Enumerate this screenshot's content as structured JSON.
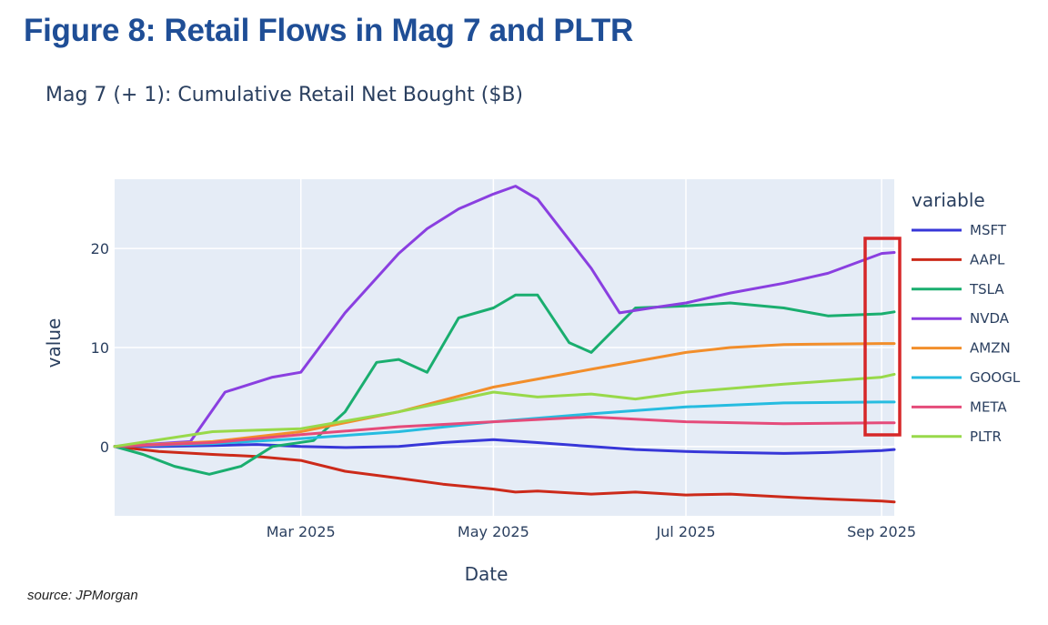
{
  "figure": {
    "title": "Figure 8: Retail Flows in Mag 7 and PLTR",
    "source": "source: JPMorgan"
  },
  "colors": {
    "plot_background": "#e5ecf6",
    "grid": "#ffffff",
    "text": "#2a3f5f",
    "figure_title": "#1f4e96",
    "highlight_box": "#d62728"
  },
  "chart_data": {
    "type": "line",
    "title": "Mag 7 (+ 1): Cumulative Retail Net Bought ($B)",
    "xlabel": "Date",
    "ylabel": "value",
    "legend_title": "variable",
    "legend_position": "right",
    "grid": true,
    "xlim": [
      "2025-01-01",
      "2025-09-05"
    ],
    "ylim": [
      -7,
      27
    ],
    "x_ticks": [
      {
        "date": "2025-03-01",
        "label": "Mar 2025"
      },
      {
        "date": "2025-05-01",
        "label": "May 2025"
      },
      {
        "date": "2025-07-01",
        "label": "Jul 2025"
      },
      {
        "date": "2025-09-01",
        "label": "Sep 2025"
      }
    ],
    "y_ticks": [
      {
        "value": 0,
        "label": "0"
      },
      {
        "value": 10,
        "label": "10"
      },
      {
        "value": 20,
        "label": "20"
      }
    ],
    "annotation": "red box highlighting latest values",
    "series": [
      {
        "name": "MSFT",
        "color": "#3737d8",
        "points": [
          [
            "2025-01-01",
            0.0
          ],
          [
            "2025-01-15",
            0.0
          ],
          [
            "2025-02-01",
            0.1
          ],
          [
            "2025-02-15",
            0.2
          ],
          [
            "2025-03-01",
            0.0
          ],
          [
            "2025-03-15",
            -0.1
          ],
          [
            "2025-04-01",
            0.0
          ],
          [
            "2025-04-15",
            0.4
          ],
          [
            "2025-05-01",
            0.7
          ],
          [
            "2025-05-15",
            0.4
          ],
          [
            "2025-06-01",
            0.0
          ],
          [
            "2025-06-15",
            -0.3
          ],
          [
            "2025-07-01",
            -0.5
          ],
          [
            "2025-07-15",
            -0.6
          ],
          [
            "2025-08-01",
            -0.7
          ],
          [
            "2025-08-15",
            -0.6
          ],
          [
            "2025-09-01",
            -0.4
          ],
          [
            "2025-09-05",
            -0.3
          ]
        ]
      },
      {
        "name": "AAPL",
        "color": "#cc2a1a",
        "points": [
          [
            "2025-01-01",
            0.0
          ],
          [
            "2025-01-15",
            -0.5
          ],
          [
            "2025-02-01",
            -0.8
          ],
          [
            "2025-02-15",
            -1.0
          ],
          [
            "2025-03-01",
            -1.4
          ],
          [
            "2025-03-15",
            -2.5
          ],
          [
            "2025-04-01",
            -3.2
          ],
          [
            "2025-04-15",
            -3.8
          ],
          [
            "2025-05-01",
            -4.3
          ],
          [
            "2025-05-08",
            -4.6
          ],
          [
            "2025-05-15",
            -4.5
          ],
          [
            "2025-06-01",
            -4.8
          ],
          [
            "2025-06-15",
            -4.6
          ],
          [
            "2025-07-01",
            -4.9
          ],
          [
            "2025-07-15",
            -4.8
          ],
          [
            "2025-08-01",
            -5.1
          ],
          [
            "2025-08-15",
            -5.3
          ],
          [
            "2025-09-01",
            -5.5
          ],
          [
            "2025-09-05",
            -5.6
          ]
        ]
      },
      {
        "name": "TSLA",
        "color": "#1aae6f",
        "points": [
          [
            "2025-01-01",
            0.0
          ],
          [
            "2025-01-10",
            -0.8
          ],
          [
            "2025-01-20",
            -2.0
          ],
          [
            "2025-01-31",
            -2.8
          ],
          [
            "2025-02-10",
            -2.0
          ],
          [
            "2025-02-20",
            0.0
          ],
          [
            "2025-03-05",
            0.6
          ],
          [
            "2025-03-15",
            3.5
          ],
          [
            "2025-03-25",
            8.5
          ],
          [
            "2025-04-01",
            8.8
          ],
          [
            "2025-04-10",
            7.5
          ],
          [
            "2025-04-20",
            13.0
          ],
          [
            "2025-05-01",
            14.0
          ],
          [
            "2025-05-08",
            15.3
          ],
          [
            "2025-05-15",
            15.3
          ],
          [
            "2025-05-25",
            10.5
          ],
          [
            "2025-06-01",
            9.5
          ],
          [
            "2025-06-15",
            14.0
          ],
          [
            "2025-07-01",
            14.2
          ],
          [
            "2025-07-15",
            14.5
          ],
          [
            "2025-08-01",
            14.0
          ],
          [
            "2025-08-15",
            13.2
          ],
          [
            "2025-09-01",
            13.4
          ],
          [
            "2025-09-05",
            13.6
          ]
        ]
      },
      {
        "name": "NVDA",
        "color": "#8a3fe0",
        "points": [
          [
            "2025-01-01",
            0.0
          ],
          [
            "2025-01-15",
            0.3
          ],
          [
            "2025-01-25",
            0.5
          ],
          [
            "2025-02-05",
            5.5
          ],
          [
            "2025-02-20",
            7.0
          ],
          [
            "2025-03-01",
            7.5
          ],
          [
            "2025-03-15",
            13.5
          ],
          [
            "2025-04-01",
            19.5
          ],
          [
            "2025-04-10",
            22.0
          ],
          [
            "2025-04-20",
            24.0
          ],
          [
            "2025-05-01",
            25.5
          ],
          [
            "2025-05-08",
            26.3
          ],
          [
            "2025-05-15",
            25.0
          ],
          [
            "2025-06-01",
            18.0
          ],
          [
            "2025-06-10",
            13.5
          ],
          [
            "2025-06-20",
            14.0
          ],
          [
            "2025-07-01",
            14.5
          ],
          [
            "2025-07-15",
            15.5
          ],
          [
            "2025-08-01",
            16.5
          ],
          [
            "2025-08-15",
            17.5
          ],
          [
            "2025-09-01",
            19.5
          ],
          [
            "2025-09-05",
            19.6
          ]
        ]
      },
      {
        "name": "AMZN",
        "color": "#f28e2b",
        "points": [
          [
            "2025-01-01",
            0.0
          ],
          [
            "2025-02-01",
            0.5
          ],
          [
            "2025-03-01",
            1.5
          ],
          [
            "2025-04-01",
            3.5
          ],
          [
            "2025-05-01",
            6.0
          ],
          [
            "2025-06-01",
            7.8
          ],
          [
            "2025-07-01",
            9.5
          ],
          [
            "2025-07-15",
            10.0
          ],
          [
            "2025-08-01",
            10.3
          ],
          [
            "2025-09-01",
            10.4
          ],
          [
            "2025-09-05",
            10.4
          ]
        ]
      },
      {
        "name": "GOOGL",
        "color": "#26bce0",
        "points": [
          [
            "2025-01-01",
            0.0
          ],
          [
            "2025-02-01",
            0.3
          ],
          [
            "2025-03-01",
            0.8
          ],
          [
            "2025-04-01",
            1.5
          ],
          [
            "2025-05-01",
            2.5
          ],
          [
            "2025-06-01",
            3.3
          ],
          [
            "2025-07-01",
            4.0
          ],
          [
            "2025-08-01",
            4.4
          ],
          [
            "2025-09-01",
            4.5
          ],
          [
            "2025-09-05",
            4.5
          ]
        ]
      },
      {
        "name": "META",
        "color": "#e54b7a",
        "points": [
          [
            "2025-01-01",
            0.0
          ],
          [
            "2025-02-01",
            0.4
          ],
          [
            "2025-03-01",
            1.2
          ],
          [
            "2025-04-01",
            2.0
          ],
          [
            "2025-05-01",
            2.5
          ],
          [
            "2025-06-01",
            3.0
          ],
          [
            "2025-07-01",
            2.5
          ],
          [
            "2025-08-01",
            2.3
          ],
          [
            "2025-09-01",
            2.4
          ],
          [
            "2025-09-05",
            2.4
          ]
        ]
      },
      {
        "name": "PLTR",
        "color": "#98d94a",
        "points": [
          [
            "2025-01-01",
            0.0
          ],
          [
            "2025-02-01",
            1.5
          ],
          [
            "2025-03-01",
            1.8
          ],
          [
            "2025-04-01",
            3.5
          ],
          [
            "2025-05-01",
            5.5
          ],
          [
            "2025-05-15",
            5.0
          ],
          [
            "2025-06-01",
            5.3
          ],
          [
            "2025-06-15",
            4.8
          ],
          [
            "2025-07-01",
            5.5
          ],
          [
            "2025-08-01",
            6.3
          ],
          [
            "2025-09-01",
            7.0
          ],
          [
            "2025-09-05",
            7.3
          ]
        ]
      }
    ]
  }
}
